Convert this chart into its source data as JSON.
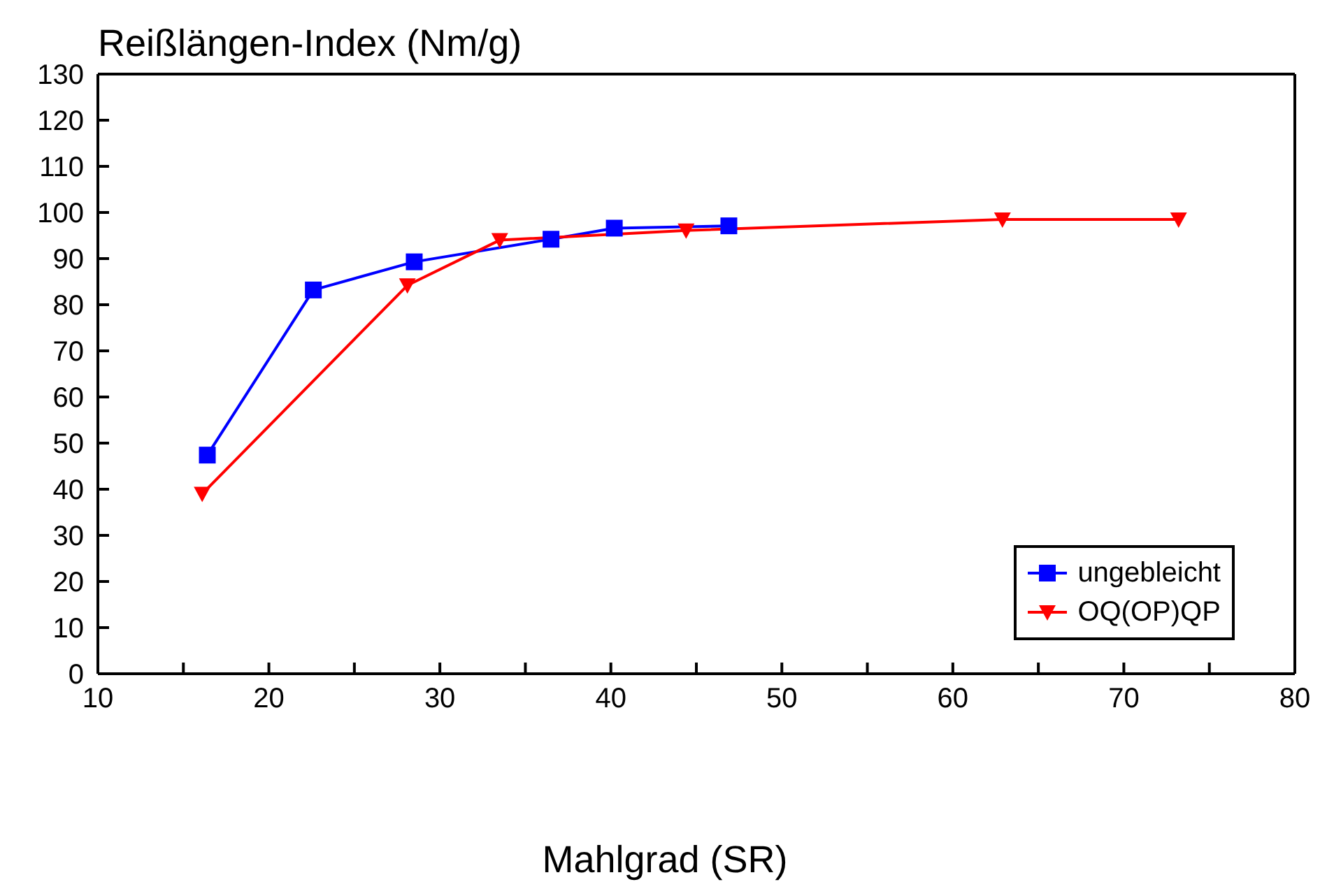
{
  "chart_data": {
    "type": "line",
    "title": "Reißlängen-Index (Nm/g)",
    "xlabel": "Mahlgrad (SR)",
    "xlim": [
      10,
      80
    ],
    "xticks": [
      10,
      {
        "value": 15,
        "label": null
      },
      20,
      {
        "value": 25,
        "label": null
      },
      30,
      {
        "value": 35,
        "label": null
      },
      40,
      {
        "value": 45,
        "label": null
      },
      50,
      {
        "value": 55,
        "label": null
      },
      60,
      {
        "value": 65,
        "label": null
      },
      70,
      {
        "value": 75,
        "label": null
      },
      80
    ],
    "ylim": [
      0,
      130
    ],
    "yticks": [
      0,
      10,
      20,
      30,
      40,
      50,
      60,
      70,
      80,
      90,
      100,
      110,
      120,
      130
    ],
    "legend": "bottom right",
    "series": [
      {
        "name": "ungebleicht",
        "color": "#0000ff",
        "marker": "square",
        "x": [
          16.4,
          22.6,
          28.5,
          36.5,
          40.2,
          46.9
        ],
        "values": [
          47.4,
          83.2,
          89.3,
          94.2,
          96.6,
          97.1
        ]
      },
      {
        "name": "OQ(OP)QP",
        "color": "#ff0000",
        "marker": "triangle",
        "x": [
          16.1,
          28.1,
          33.5,
          44.4,
          62.9,
          73.2
        ],
        "values": [
          39.0,
          84.2,
          94.0,
          96.1,
          98.5,
          98.5
        ]
      }
    ]
  }
}
